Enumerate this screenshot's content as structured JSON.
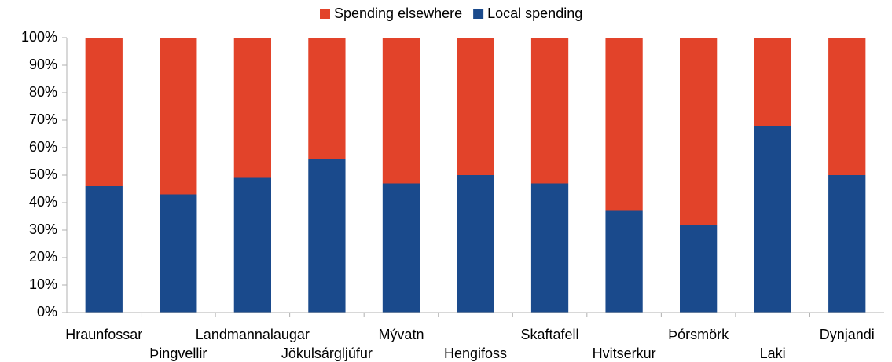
{
  "chart_data": {
    "type": "stacked_bar_100",
    "categories": [
      "Hraunfossar",
      "Þingvellir",
      "Landmannalaugar",
      "Jökulsárgljúfur",
      "Mývatn",
      "Hengifoss",
      "Skaftafell",
      "Hvitserkur",
      "Þórsmörk",
      "Laki",
      "Dynjandi"
    ],
    "series": [
      {
        "name": "Spending elsewhere",
        "color": "#e2432a",
        "values": [
          54,
          57,
          51,
          44,
          53,
          50,
          53,
          63,
          68,
          32,
          50
        ]
      },
      {
        "name": "Local spending",
        "color": "#1a4a8c",
        "values": [
          46,
          43,
          49,
          56,
          47,
          50,
          47,
          37,
          32,
          68,
          50
        ]
      }
    ],
    "ylim": [
      0,
      100
    ],
    "yticks": [
      {
        "value": 0,
        "label": "0%"
      },
      {
        "value": 10,
        "label": "10%"
      },
      {
        "value": 20,
        "label": "20%"
      },
      {
        "value": 30,
        "label": "30%"
      },
      {
        "value": 40,
        "label": "40%"
      },
      {
        "value": 50,
        "label": "50%"
      },
      {
        "value": 60,
        "label": "60%"
      },
      {
        "value": 70,
        "label": "70%"
      },
      {
        "value": 80,
        "label": "80%"
      },
      {
        "value": 90,
        "label": "90%"
      },
      {
        "value": 100,
        "label": "100%"
      }
    ],
    "legend": "top",
    "grid": false
  }
}
